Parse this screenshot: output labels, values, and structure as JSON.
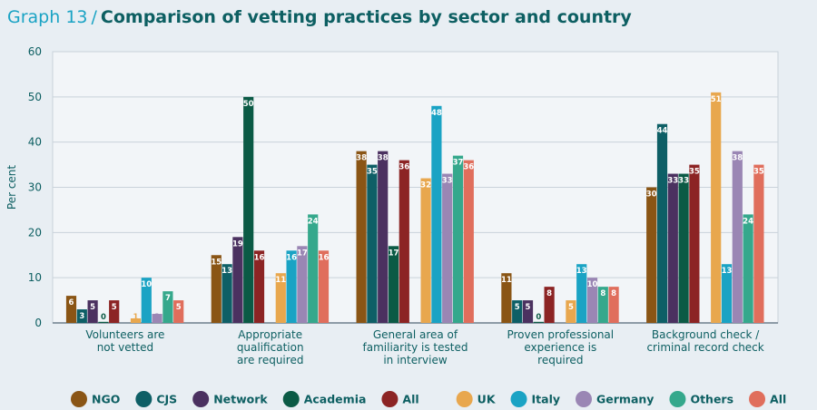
{
  "chart_data": {
    "type": "bar",
    "title_prefix": "Graph 13",
    "title_separator": "/",
    "title": "Comparison of vetting practices by sector and country",
    "ylabel": "Per cent",
    "ylim": [
      0,
      60
    ],
    "yticks": [
      0,
      10,
      20,
      30,
      40,
      50,
      60
    ],
    "grid": true,
    "legend_position": "bottom",
    "categories": [
      [
        "Volunteers are",
        "not vetted"
      ],
      [
        "Appropriate",
        "qualification",
        "are required"
      ],
      [
        "General area of",
        "familiarity is tested",
        "in interview"
      ],
      [
        "Proven professional",
        "experience is",
        "required"
      ],
      [
        "Background check /",
        "criminal record check"
      ]
    ],
    "series": [
      {
        "name": "NGO",
        "group": "sector",
        "color": "#8a5515",
        "values": [
          6,
          15,
          38,
          11,
          30
        ]
      },
      {
        "name": "CJS",
        "group": "sector",
        "color": "#0e5f66",
        "values": [
          3,
          13,
          35,
          5,
          44
        ]
      },
      {
        "name": "Network",
        "group": "sector",
        "color": "#4b3160",
        "values": [
          5,
          19,
          38,
          5,
          33
        ]
      },
      {
        "name": "Academia",
        "group": "sector",
        "color": "#0b5a45",
        "values": [
          0,
          50,
          17,
          0,
          33
        ]
      },
      {
        "name": "All",
        "group": "sector",
        "color": "#8c2424",
        "values": [
          5,
          16,
          36,
          8,
          35
        ]
      },
      {
        "name": "UK",
        "group": "country",
        "color": "#e8a74e",
        "values": [
          1,
          11,
          32,
          5,
          51
        ]
      },
      {
        "name": "Italy",
        "group": "country",
        "color": "#1aa3c4",
        "values": [
          10,
          16,
          48,
          13,
          13
        ]
      },
      {
        "name": "Germany",
        "group": "country",
        "color": "#9a86b4",
        "values": [
          2,
          17,
          33,
          10,
          38
        ]
      },
      {
        "name": "Others",
        "group": "country",
        "color": "#35a88c",
        "values": [
          7,
          24,
          37,
          8,
          24
        ]
      },
      {
        "name": "All",
        "group": "country",
        "color": "#e06e5c",
        "values": [
          5,
          16,
          36,
          8,
          35
        ]
      }
    ]
  }
}
